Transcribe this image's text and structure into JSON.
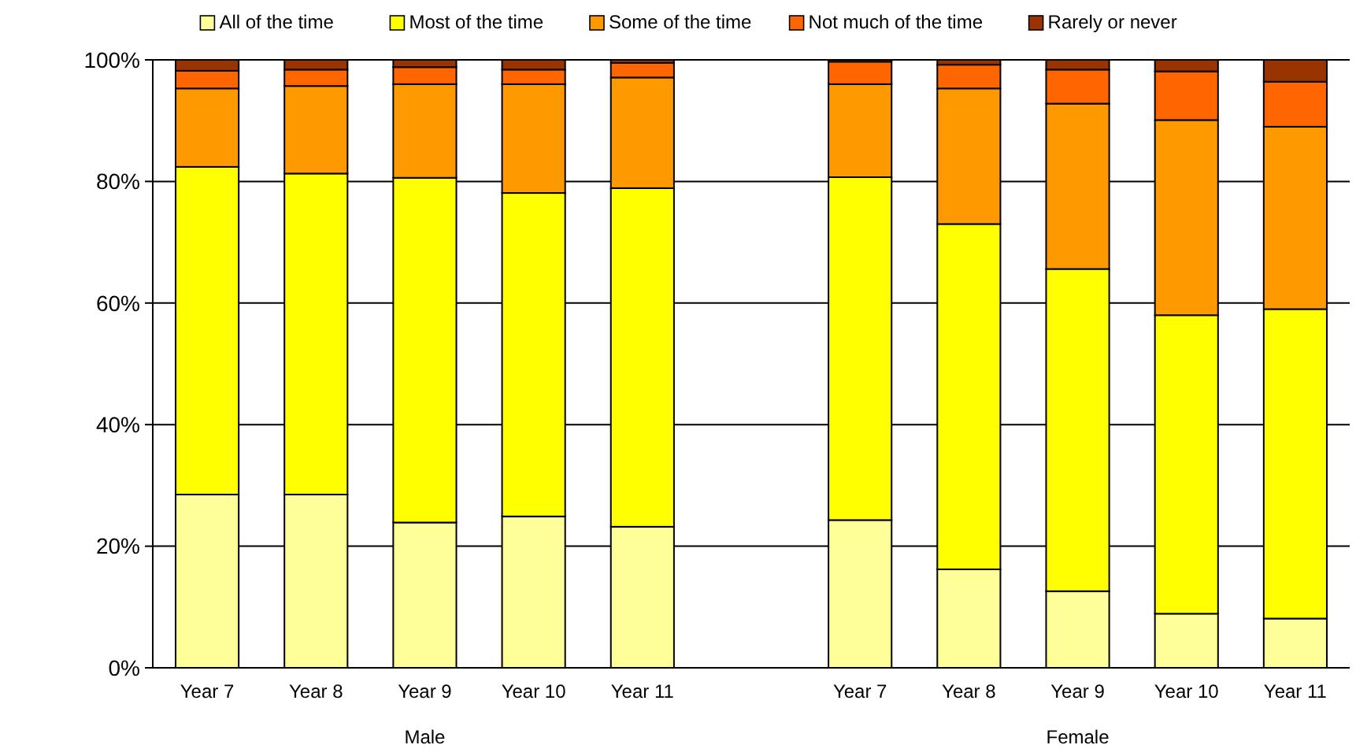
{
  "chart_data": {
    "type": "bar",
    "stacked": true,
    "categories": [
      "Year 7",
      "Year 8",
      "Year 9",
      "Year 10",
      "Year 11",
      null,
      "Year 7",
      "Year 8",
      "Year 9",
      "Year 10",
      "Year 11"
    ],
    "series": [
      {
        "name": "All of the time",
        "color": "#ffff99",
        "values": [
          28.5,
          28.5,
          23.9,
          24.9,
          23.2,
          null,
          24.3,
          16.2,
          12.6,
          8.9,
          8.1
        ]
      },
      {
        "name": "Most of the time",
        "color": "#ffff00",
        "values": [
          53.9,
          52.8,
          56.7,
          53.2,
          55.7,
          null,
          56.4,
          56.8,
          53.0,
          49.1,
          50.9
        ]
      },
      {
        "name": "Some of the time",
        "color": "#ff9900",
        "values": [
          12.9,
          14.4,
          15.4,
          17.9,
          18.2,
          null,
          15.3,
          22.3,
          27.2,
          32.1,
          30.0
        ]
      },
      {
        "name": "Not much of the time",
        "color": "#ff6600",
        "values": [
          2.9,
          2.7,
          2.8,
          2.4,
          2.4,
          null,
          3.7,
          3.9,
          5.6,
          8.0,
          7.4
        ]
      },
      {
        "name": "Rarely or never",
        "color": "#993300",
        "values": [
          1.8,
          1.6,
          1.2,
          1.6,
          0.5,
          null,
          0.3,
          0.8,
          1.6,
          1.9,
          3.6
        ]
      }
    ],
    "ylim": [
      0,
      100
    ],
    "yticks": [
      {
        "value": 0,
        "label": "0%"
      },
      {
        "value": 20,
        "label": "20%"
      },
      {
        "value": 40,
        "label": "40%"
      },
      {
        "value": 60,
        "label": "60%"
      },
      {
        "value": 80,
        "label": "80%"
      },
      {
        "value": 100,
        "label": "100%"
      }
    ],
    "grid": "y",
    "legend": "top",
    "annotations": [
      "Male",
      "Female"
    ]
  }
}
